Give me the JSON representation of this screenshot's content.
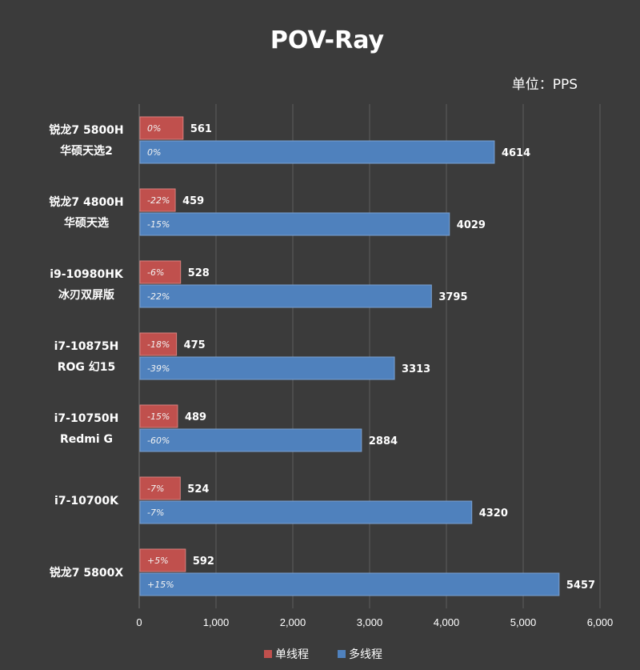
{
  "chart_data": {
    "type": "bar",
    "orientation": "horizontal",
    "title": "POV-Ray",
    "unit_label": "单位：PPS",
    "categories": [
      [
        "锐龙7 5800H",
        "华硕天选2"
      ],
      [
        "锐龙7 4800H",
        "华硕天选"
      ],
      [
        "i9-10980HK",
        "冰刃双屏版"
      ],
      [
        "i7-10875H",
        "ROG 幻15"
      ],
      [
        "i7-10750H",
        "Redmi G"
      ],
      [
        "i7-10700K"
      ],
      [
        "锐龙7 5800X"
      ]
    ],
    "series": [
      {
        "name": "单线程",
        "color": "#c0504d",
        "values": [
          561,
          459,
          528,
          475,
          489,
          524,
          592
        ],
        "pct_labels": [
          "0%",
          "-22%",
          "-6%",
          "-18%",
          "-15%",
          "-7%",
          "+5%"
        ]
      },
      {
        "name": "多线程",
        "color": "#4f81bd",
        "values": [
          4614,
          4029,
          3795,
          3313,
          2884,
          4320,
          5457
        ],
        "pct_labels": [
          "0%",
          "-15%",
          "-22%",
          "-39%",
          "-60%",
          "-7%",
          "+15%"
        ]
      }
    ],
    "x_ticks": [
      "0",
      "1,000",
      "2,000",
      "3,000",
      "4,000",
      "5,000",
      "6,000"
    ],
    "xlim": [
      0,
      6000
    ],
    "grid": true,
    "legend_position": "bottom"
  }
}
